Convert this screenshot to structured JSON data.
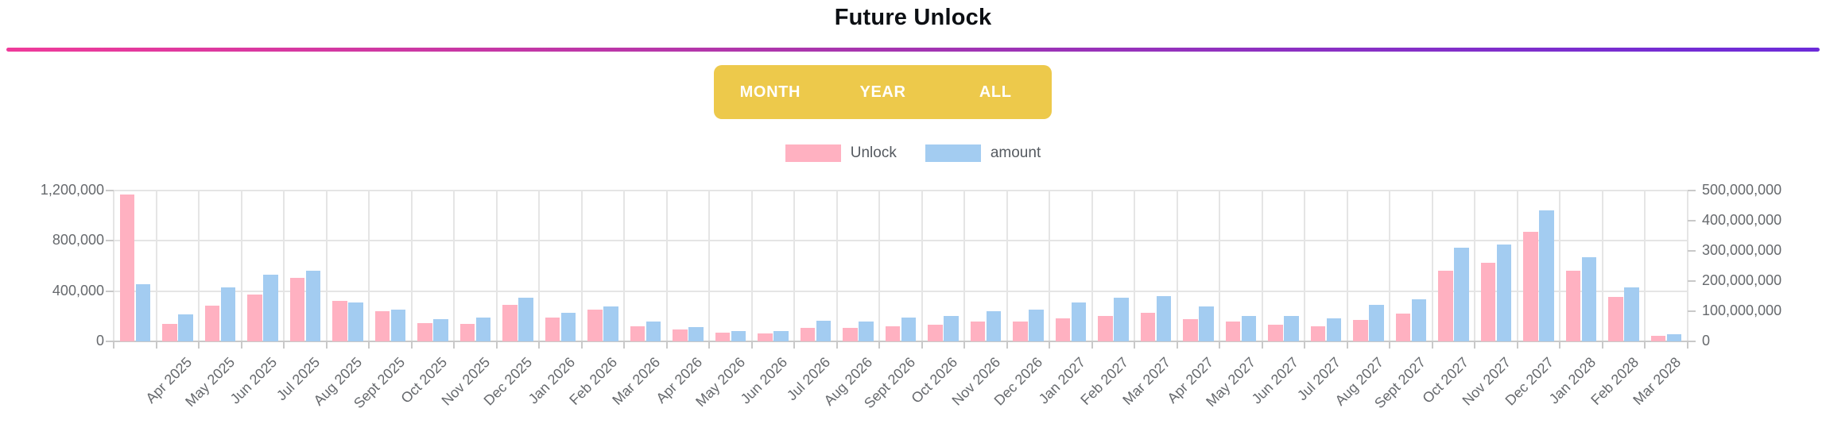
{
  "title": "Future Unlock",
  "range_selector": {
    "background_color": "#edc94b",
    "buttons": [
      {
        "label": "MONTH"
      },
      {
        "label": "YEAR"
      },
      {
        "label": "ALL"
      }
    ]
  },
  "legend": [
    {
      "label": "Unlock",
      "color": "#ffb1c1"
    },
    {
      "label": "amount",
      "color": "#a3ccf1"
    }
  ],
  "chart_data": {
    "type": "bar",
    "title": "Future Unlock",
    "grid": true,
    "legend_position": "top",
    "categories": [
      "",
      "Apr 2025",
      "May 2025",
      "Jun 2025",
      "Jul 2025",
      "Aug 2025",
      "Sept 2025",
      "Oct 2025",
      "Nov 2025",
      "Dec 2025",
      "Jan 2026",
      "Feb 2026",
      "Mar 2026",
      "Apr 2026",
      "May 2026",
      "Jun 2026",
      "Jul 2026",
      "Aug 2026",
      "Sept 2026",
      "Oct 2026",
      "Nov 2026",
      "Dec 2026",
      "Jan 2027",
      "Feb 2027",
      "Mar 2027",
      "Apr 2027",
      "May 2027",
      "Jun 2027",
      "Jul 2027",
      "Aug 2027",
      "Sept 2027",
      "Oct 2027",
      "Nov 2027",
      "Dec 2027",
      "Jan 2028",
      "Feb 2028",
      "Mar 2028"
    ],
    "series": [
      {
        "name": "Unlock",
        "axis": "left",
        "color": "#ffb1c1",
        "values": [
          1170000,
          140000,
          285000,
          370000,
          505000,
          320000,
          240000,
          145000,
          140000,
          290000,
          190000,
          255000,
          120000,
          95000,
          70000,
          65000,
          110000,
          105000,
          120000,
          135000,
          160000,
          155000,
          185000,
          200000,
          230000,
          180000,
          155000,
          130000,
          120000,
          170000,
          220000,
          560000,
          625000,
          870000,
          560000,
          355000,
          45000
        ]
      },
      {
        "name": "amount",
        "axis": "right",
        "color": "#a3ccf1",
        "values": [
          190000000,
          90000000,
          180000000,
          220000000,
          235000000,
          130000000,
          105000000,
          75000000,
          80000000,
          145000000,
          95000000,
          115000000,
          65000000,
          48000000,
          35000000,
          35000000,
          68000000,
          65000000,
          80000000,
          85000000,
          100000000,
          105000000,
          130000000,
          145000000,
          150000000,
          115000000,
          85000000,
          85000000,
          77000000,
          120000000,
          140000000,
          310000000,
          320000000,
          435000000,
          280000000,
          180000000,
          25000000
        ]
      }
    ],
    "left_axis": {
      "max": 1200000,
      "tick_values": [
        0,
        400000,
        800000,
        1200000
      ],
      "tick_labels": [
        "0",
        "400,000",
        "800,000",
        "1,200,000"
      ]
    },
    "right_axis": {
      "max": 500000000,
      "tick_values": [
        0,
        100000000,
        200000000,
        300000000,
        400000000,
        500000000
      ],
      "tick_labels": [
        "0",
        "100,000,000",
        "200,000,000",
        "300,000,000",
        "400,000,000",
        "500,000,000"
      ]
    }
  }
}
